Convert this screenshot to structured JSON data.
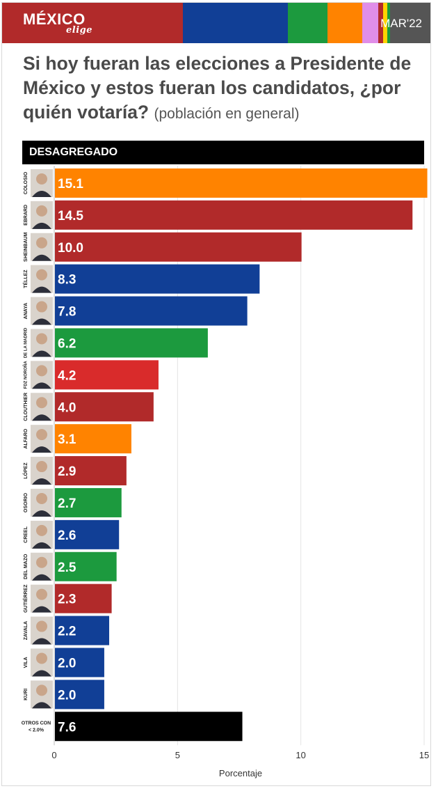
{
  "brand": {
    "logo": "MÉXICO",
    "logo_sub": "elige",
    "date": "MAR'22",
    "stripe_colors": [
      "#b12a2a",
      "#113f96",
      "#1c9a3e",
      "#ff8300",
      "#e08ee8",
      "#b12a2a",
      "#ffd400",
      "#1c9a3e",
      "#555555"
    ]
  },
  "title": {
    "main": "Si hoy fueran las elecciones a Presidente de México y estos fueran los candidatos, ¿por quién votaría?",
    "subtitle": "(población en general)"
  },
  "chart_data": {
    "type": "bar",
    "orientation": "horizontal",
    "header": "DESAGREGADO",
    "xlabel": "Porcentaje",
    "ylabel": "",
    "xlim": [
      0,
      15
    ],
    "xticks": [
      "0",
      "5",
      "10",
      "15"
    ],
    "grid": true,
    "categories": [
      "COLOSIO",
      "EBRARD",
      "SHEINBAUM",
      "TÉLLEZ",
      "ANAYA",
      "DE LA MADRID",
      "FDZ NOROÑA",
      "CLOUTHIER",
      "ALFARO",
      "LÓPEZ",
      "OSORIO",
      "CREEL",
      "DEL MAZO",
      "GUTIÉRREZ",
      "ZAVALA",
      "VILA",
      "KURI",
      "OTROS CON < 2.0%"
    ],
    "values": [
      15.1,
      14.5,
      10.0,
      8.3,
      7.8,
      6.2,
      4.2,
      4.0,
      3.1,
      2.9,
      2.7,
      2.6,
      2.5,
      2.3,
      2.2,
      2.0,
      2.0,
      7.6
    ],
    "labels": [
      "15.1",
      "14.5",
      "10.0",
      "8.3",
      "7.8",
      "6.2",
      "4.2",
      "4.0",
      "3.1",
      "2.9",
      "2.7",
      "2.6",
      "2.5",
      "2.3",
      "2.2",
      "2.0",
      "2.0",
      "7.6"
    ],
    "colors": [
      "#ff8300",
      "#b12a2a",
      "#b12a2a",
      "#113f96",
      "#113f96",
      "#1c9a3e",
      "#d92b2b",
      "#b12a2a",
      "#ff8300",
      "#b12a2a",
      "#1c9a3e",
      "#113f96",
      "#1c9a3e",
      "#b12a2a",
      "#113f96",
      "#113f96",
      "#113f96",
      "#000000"
    ]
  }
}
